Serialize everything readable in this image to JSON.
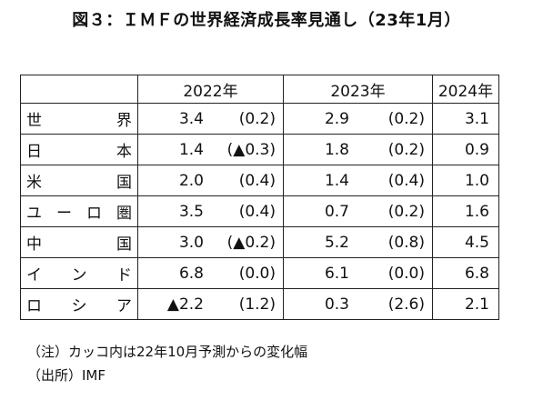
{
  "title": "図３：ＩＭＦの世界経済成長率見通し（23年1月）",
  "table": {
    "years": [
      "2022年",
      "2023年",
      "2024年"
    ],
    "rows": [
      {
        "region": [
          "世",
          "界"
        ],
        "y2022": "3.4",
        "y2022_rev": "(0.2)",
        "y2023": "2.9",
        "y2023_rev": "(0.2)",
        "y2024": "3.1"
      },
      {
        "region": [
          "日",
          "本"
        ],
        "y2022": "1.4",
        "y2022_rev": "(▲0.3)",
        "y2023": "1.8",
        "y2023_rev": "(0.2)",
        "y2024": "0.9"
      },
      {
        "region": [
          "米",
          "国"
        ],
        "y2022": "2.0",
        "y2022_rev": "(0.4)",
        "y2023": "1.4",
        "y2023_rev": "(0.4)",
        "y2024": "1.0"
      },
      {
        "region": [
          "ユ",
          "ー",
          "ロ",
          "圏"
        ],
        "y2022": "3.5",
        "y2022_rev": "(0.4)",
        "y2023": "0.7",
        "y2023_rev": "(0.2)",
        "y2024": "1.6"
      },
      {
        "region": [
          "中",
          "国"
        ],
        "y2022": "3.0",
        "y2022_rev": "(▲0.2)",
        "y2023": "5.2",
        "y2023_rev": "(0.8)",
        "y2024": "4.5"
      },
      {
        "region": [
          "イ",
          "ン",
          "ド"
        ],
        "y2022": "6.8",
        "y2022_rev": "(0.0)",
        "y2023": "6.1",
        "y2023_rev": "(0.0)",
        "y2024": "6.8"
      },
      {
        "region": [
          "ロ",
          "シ",
          "ア"
        ],
        "y2022": "▲2.2",
        "y2022_rev": "(1.2)",
        "y2023": "0.3",
        "y2023_rev": "(2.6)",
        "y2024": "2.1"
      }
    ]
  },
  "notes": {
    "note": "（注）カッコ内は22年10月予測からの変化幅",
    "source": "（出所）IMF"
  }
}
